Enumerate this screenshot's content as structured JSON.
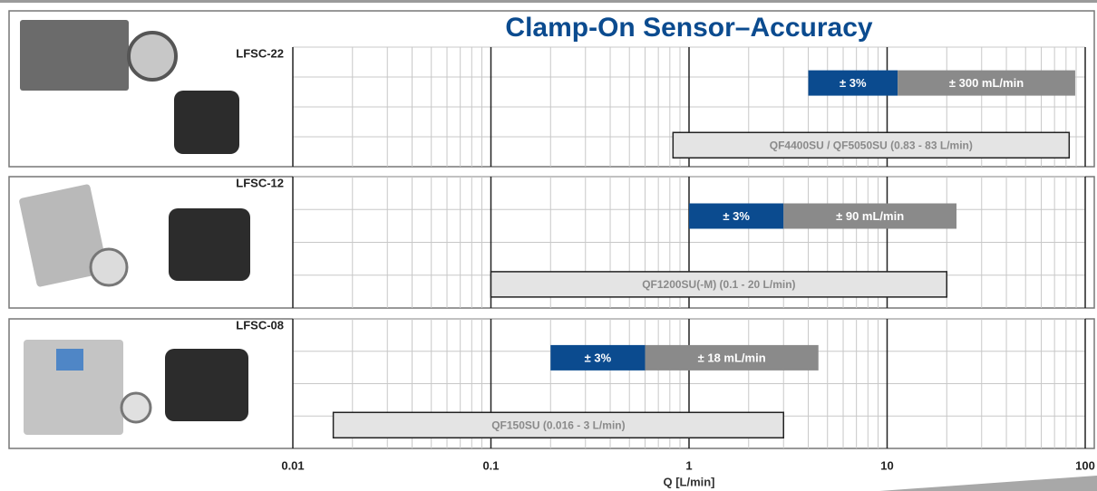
{
  "chart_data": {
    "type": "range-bar",
    "title": "Clamp-On Sensor–Accuracy",
    "xlabel": "Q [L/min]",
    "xscale": "log",
    "xlim": [
      0.01,
      100
    ],
    "xticks": [
      0.01,
      0.1,
      1,
      10,
      100
    ],
    "xminorticks": [
      0.02,
      0.03,
      0.04,
      0.05,
      0.06,
      0.07,
      0.08,
      0.09,
      0.2,
      0.3,
      0.4,
      0.5,
      0.6,
      0.7,
      0.8,
      0.9,
      2,
      3,
      4,
      5,
      6,
      7,
      8,
      9,
      20,
      30,
      40,
      50,
      60,
      70,
      80,
      90
    ],
    "grid": true,
    "panels": [
      {
        "name": "LFSC-22",
        "bars": [
          {
            "label": "± 3%",
            "values": [
              4,
              11.3
            ],
            "color": "#0b4b8f"
          },
          {
            "label": "± 300 mL/min",
            "values": [
              11.3,
              89
            ],
            "color": "#8a8a8a"
          },
          {
            "label": "QF4400SU / QF5050SU (0.83 - 83 L/min)",
            "values": [
              0.83,
              83
            ],
            "color": "#e4e4e4"
          }
        ]
      },
      {
        "name": "LFSC-12",
        "bars": [
          {
            "label": "± 3%",
            "values": [
              1,
              3
            ],
            "color": "#0b4b8f"
          },
          {
            "label": "± 90 mL/min",
            "values": [
              3,
              22.4
            ],
            "color": "#8a8a8a"
          },
          {
            "label": "QF1200SU(-M)  (0.1 - 20 L/min)",
            "values": [
              0.1,
              20
            ],
            "color": "#e4e4e4"
          }
        ]
      },
      {
        "name": "LFSC-08",
        "bars": [
          {
            "label": "± 3%",
            "values": [
              0.2,
              0.6
            ],
            "color": "#0b4b8f"
          },
          {
            "label": "± 18 mL/min",
            "values": [
              0.6,
              4.5
            ],
            "color": "#8a8a8a"
          },
          {
            "label": "QF150SU  (0.016 - 3 L/min)",
            "values": [
              0.016,
              3
            ],
            "color": "#e4e4e4"
          }
        ]
      }
    ]
  }
}
